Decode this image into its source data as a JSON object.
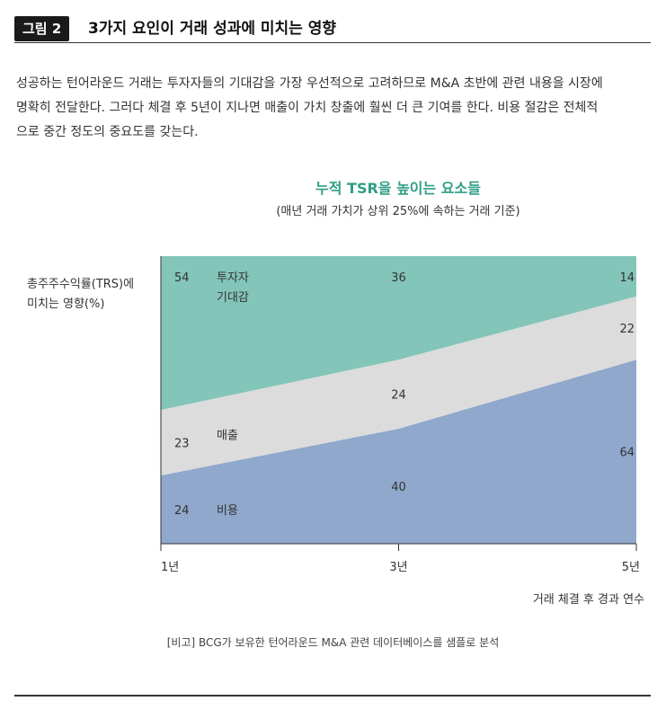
{
  "header": {
    "figure_label": "그림 2",
    "title": "3가지 요인이 거래 성과에 미치는 영향"
  },
  "intro_text": "성공하는 턴어라운드 거래는 투자자들의 기대감을 가장 우선적으로 고려하므로 M&A 초반에 관련 내용을 시장에\n명확히 전달한다. 그러다 체결 후 5년이 지나면 매출이 가치 창출에 훨씬 더 큰 기여를 한다. 비용 절감은 전체적\n으로 중간 정도의 중요도를 갖는다.",
  "chart_data": {
    "type": "area",
    "stacked": true,
    "percent": true,
    "title": "누적 TSR을 높이는 요소들",
    "subtitle": "(매년 거래 가치가 상위 25%에 속하는 거래 기준)",
    "ylabel": "총주주수익률(TRS)에\n미치는 영향(%)",
    "xlabel": "거래 체결 후 경과 연수",
    "x": [
      "1년",
      "3년",
      "5년"
    ],
    "ylim": [
      0,
      100
    ],
    "series": [
      {
        "name": "비용",
        "values": [
          24,
          40,
          64
        ],
        "color": "#8fa8cb"
      },
      {
        "name": "매출",
        "values": [
          23,
          24,
          22
        ],
        "color": "#dcdcdc"
      },
      {
        "name": "투자자 기대감",
        "values": [
          54,
          36,
          14
        ],
        "color": "#83c5b8"
      }
    ]
  },
  "source": "[비고] BCG가 보유한 턴어라운드 M&A 관련 데이터베이스를 샘플로 분석"
}
